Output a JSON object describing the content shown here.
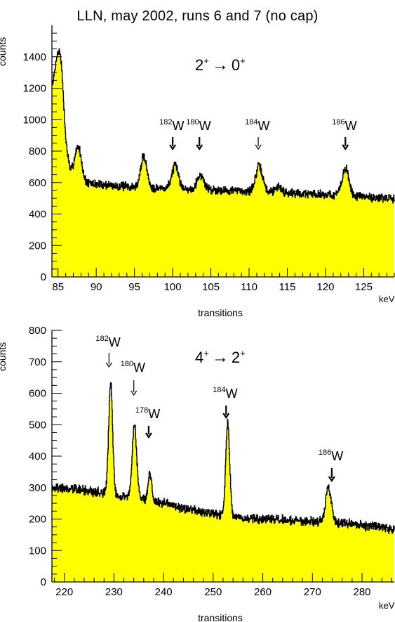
{
  "page": {
    "title": "LLN, may 2002, runs 6 and 7 (no cap)"
  },
  "colors": {
    "fill": "#ffff00",
    "line": "#000000",
    "background": "#ffffff"
  },
  "chart_data": [
    {
      "type": "area",
      "title": "",
      "transition": {
        "from": "2",
        "from_parity": "+",
        "to": "0",
        "to_parity": "+"
      },
      "xlabel": "transitions",
      "ylabel": "counts",
      "x_unit": "keV",
      "xlim": [
        84.2,
        129.0
      ],
      "ylim": [
        0,
        1600
      ],
      "xticks": [
        85,
        90,
        95,
        100,
        105,
        110,
        115,
        120,
        125
      ],
      "yticks": [
        0,
        200,
        400,
        600,
        800,
        1000,
        1200,
        1400
      ],
      "baseline": [
        [
          84.2,
          1220
        ],
        [
          84.8,
          1330
        ],
        [
          85.4,
          1160
        ],
        [
          86.0,
          850
        ],
        [
          86.6,
          660
        ],
        [
          87.4,
          600
        ],
        [
          90,
          590
        ],
        [
          95,
          570
        ],
        [
          100,
          560
        ],
        [
          105,
          555
        ],
        [
          110,
          545
        ],
        [
          115,
          535
        ],
        [
          120,
          525
        ],
        [
          125,
          510
        ],
        [
          129,
          495
        ]
      ],
      "peaks": [
        {
          "x": 85.3,
          "height": 220,
          "width": 0.35
        },
        {
          "x": 87.6,
          "height": 230,
          "width": 0.45
        },
        {
          "x": 96.2,
          "height": 200,
          "width": 0.4
        },
        {
          "x": 100.3,
          "height": 145,
          "width": 0.45
        },
        {
          "x": 103.6,
          "height": 90,
          "width": 0.45
        },
        {
          "x": 111.3,
          "height": 160,
          "width": 0.45
        },
        {
          "x": 113.8,
          "height": 40,
          "width": 0.4
        },
        {
          "x": 122.6,
          "height": 170,
          "width": 0.45
        }
      ],
      "noise": 22,
      "annotations": [
        {
          "mass": "182",
          "element": "W",
          "x": 100.0,
          "arrow": "bold"
        },
        {
          "mass": "180",
          "element": "W",
          "x": 103.5,
          "arrow": "bold"
        },
        {
          "mass": "184",
          "element": "W",
          "x": 111.2,
          "arrow": "thin"
        },
        {
          "mass": "186",
          "element": "W",
          "x": 122.6,
          "arrow": "bold"
        }
      ]
    },
    {
      "type": "area",
      "title": "",
      "transition": {
        "from": "4",
        "from_parity": "+",
        "to": "2",
        "to_parity": "+"
      },
      "xlabel": "transitions",
      "ylabel": "counts",
      "x_unit": "keV",
      "xlim": [
        217.5,
        286.5
      ],
      "ylim": [
        0,
        800
      ],
      "xticks": [
        220,
        230,
        240,
        250,
        260,
        270,
        280
      ],
      "yticks": [
        0,
        100,
        200,
        300,
        400,
        500,
        600,
        700,
        800
      ],
      "baseline": [
        [
          217.5,
          300
        ],
        [
          222,
          295
        ],
        [
          227,
          285
        ],
        [
          231,
          275
        ],
        [
          236,
          265
        ],
        [
          240,
          250
        ],
        [
          245,
          230
        ],
        [
          250,
          215
        ],
        [
          255,
          205
        ],
        [
          260,
          198
        ],
        [
          265,
          196
        ],
        [
          270,
          195
        ],
        [
          275,
          190
        ],
        [
          280,
          180
        ],
        [
          286.5,
          168
        ]
      ],
      "peaks": [
        {
          "x": 229.3,
          "height": 350,
          "width": 0.4
        },
        {
          "x": 234.1,
          "height": 230,
          "width": 0.45
        },
        {
          "x": 237.2,
          "height": 85,
          "width": 0.35
        },
        {
          "x": 252.9,
          "height": 295,
          "width": 0.4
        },
        {
          "x": 273.2,
          "height": 110,
          "width": 0.55
        }
      ],
      "noise": 12,
      "annotations": [
        {
          "mass": "182",
          "element": "W",
          "x": 229.0,
          "arrow": "thin"
        },
        {
          "mass": "180",
          "element": "W",
          "x": 234.0,
          "arrow": "thin"
        },
        {
          "mass": "178",
          "element": "W",
          "x": 237.0,
          "arrow": "bold"
        },
        {
          "mass": "184",
          "element": "W",
          "x": 252.6,
          "arrow": "bold"
        },
        {
          "mass": "186",
          "element": "W",
          "x": 273.9,
          "arrow": "bold"
        }
      ]
    }
  ]
}
